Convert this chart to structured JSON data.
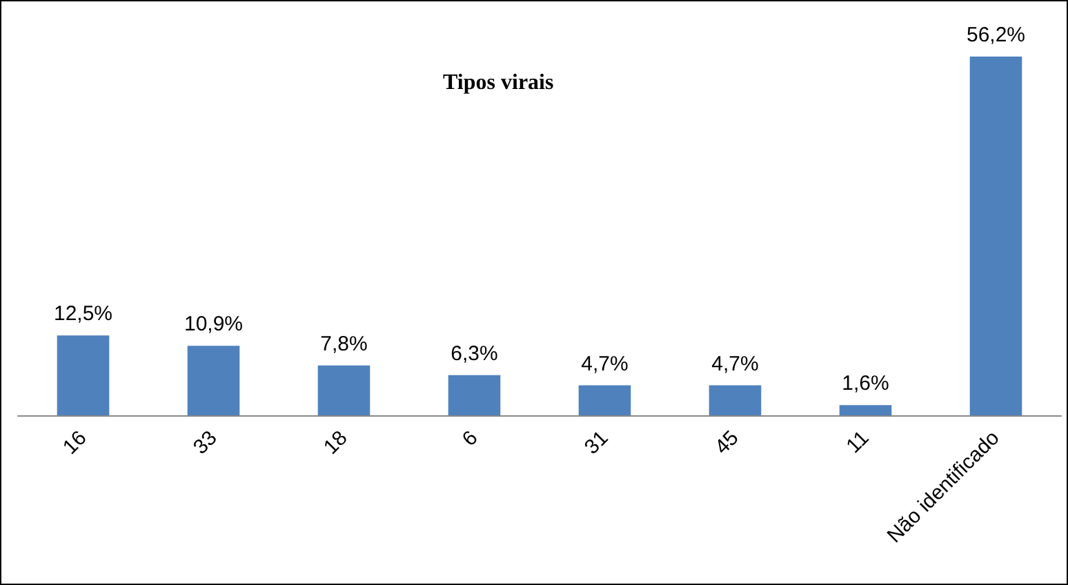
{
  "chart_data": {
    "type": "bar",
    "title": "Tipos virais",
    "categories": [
      "16",
      "33",
      "18",
      "6",
      "31",
      "45",
      "11",
      "Não identificado"
    ],
    "values": [
      12.5,
      10.9,
      7.8,
      6.3,
      4.7,
      4.7,
      1.6,
      56.2
    ],
    "value_labels": [
      "12,5%",
      "10,9%",
      "7,8%",
      "6,3%",
      "4,7%",
      "4,7%",
      "1,6%",
      "56,2%"
    ],
    "color": "#4f81bd"
  }
}
